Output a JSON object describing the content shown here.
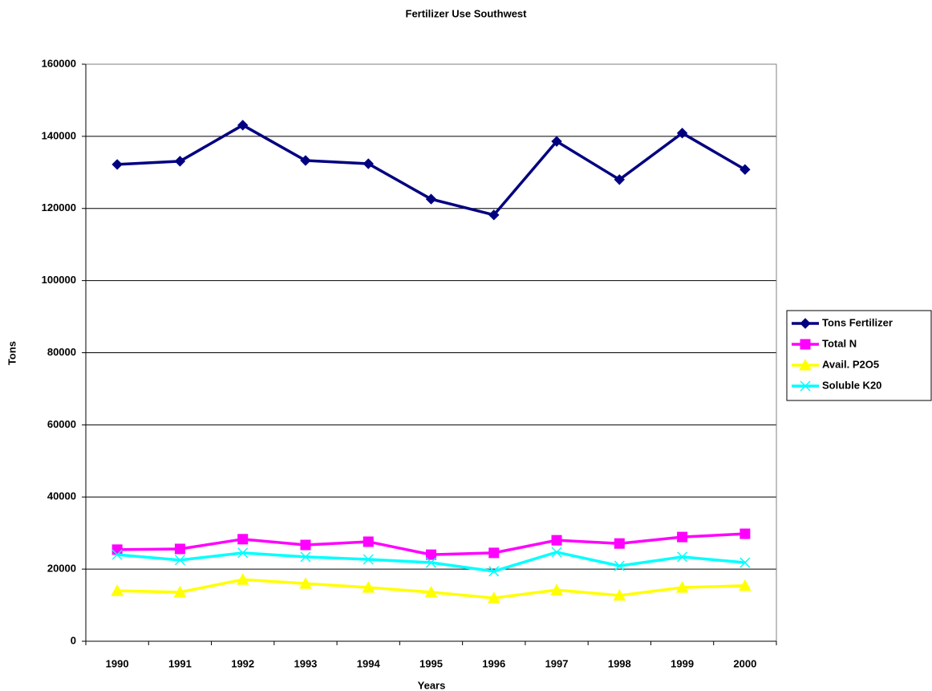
{
  "chart_data": {
    "type": "line",
    "title": "Fertilizer Use Southwest",
    "x_label": "Years",
    "y_label": "Tons",
    "categories": [
      "1990",
      "1991",
      "1992",
      "1993",
      "1994",
      "1995",
      "1996",
      "1997",
      "1998",
      "1999",
      "2000"
    ],
    "series": [
      {
        "name": "Tons Fertilizer",
        "color": "#000080",
        "marker": "diamond",
        "values": [
          132200,
          133100,
          143100,
          133300,
          132400,
          122600,
          118200,
          138600,
          128000,
          140900,
          130800
        ]
      },
      {
        "name": "Total N",
        "color": "#ff00ff",
        "marker": "square",
        "values": [
          25400,
          25600,
          28300,
          26700,
          27600,
          24000,
          24500,
          28000,
          27100,
          28900,
          29800
        ]
      },
      {
        "name": "Avail. P2O5",
        "color": "#ffff00",
        "marker": "triangle",
        "values": [
          14000,
          13600,
          17100,
          16000,
          14900,
          13600,
          12000,
          14200,
          12700,
          14900,
          15400
        ]
      },
      {
        "name": "Soluble K20",
        "color": "#00ffff",
        "marker": "x",
        "values": [
          24000,
          22500,
          24500,
          23400,
          22700,
          21800,
          19400,
          24700,
          20900,
          23400,
          21800
        ]
      }
    ],
    "ylim": [
      0,
      160000
    ],
    "yticks": [
      0,
      20000,
      40000,
      60000,
      80000,
      100000,
      120000,
      140000,
      160000
    ],
    "grid": true,
    "legend": "right"
  }
}
